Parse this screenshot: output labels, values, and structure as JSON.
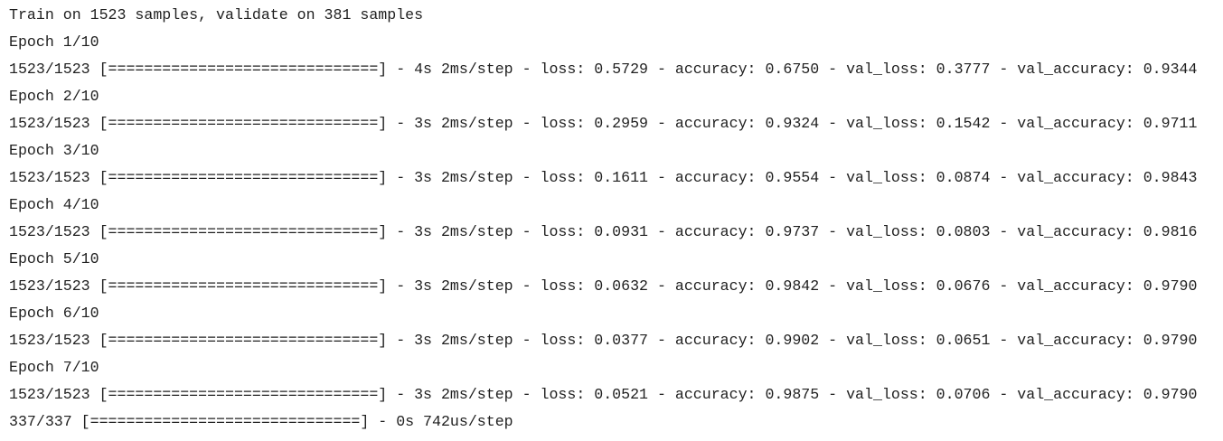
{
  "lines": [
    "Train on 1523 samples, validate on 381 samples",
    "Epoch 1/10",
    "1523/1523 [==============================] - 4s 2ms/step - loss: 0.5729 - accuracy: 0.6750 - val_loss: 0.3777 - val_accuracy: 0.9344",
    "Epoch 2/10",
    "1523/1523 [==============================] - 3s 2ms/step - loss: 0.2959 - accuracy: 0.9324 - val_loss: 0.1542 - val_accuracy: 0.9711",
    "Epoch 3/10",
    "1523/1523 [==============================] - 3s 2ms/step - loss: 0.1611 - accuracy: 0.9554 - val_loss: 0.0874 - val_accuracy: 0.9843",
    "Epoch 4/10",
    "1523/1523 [==============================] - 3s 2ms/step - loss: 0.0931 - accuracy: 0.9737 - val_loss: 0.0803 - val_accuracy: 0.9816",
    "Epoch 5/10",
    "1523/1523 [==============================] - 3s 2ms/step - loss: 0.0632 - accuracy: 0.9842 - val_loss: 0.0676 - val_accuracy: 0.9790",
    "Epoch 6/10",
    "1523/1523 [==============================] - 3s 2ms/step - loss: 0.0377 - accuracy: 0.9902 - val_loss: 0.0651 - val_accuracy: 0.9790",
    "Epoch 7/10",
    "1523/1523 [==============================] - 3s 2ms/step - loss: 0.0521 - accuracy: 0.9875 - val_loss: 0.0706 - val_accuracy: 0.9790",
    "337/337 [==============================] - 0s 742us/step"
  ]
}
